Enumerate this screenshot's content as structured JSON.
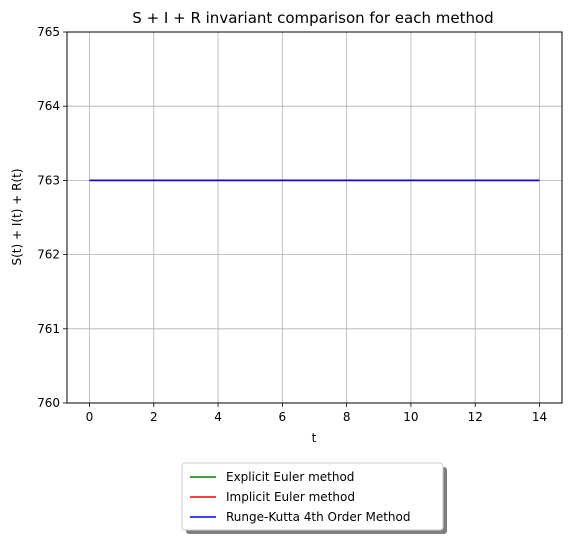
{
  "chart_data": {
    "type": "line",
    "title": "S + I + R invariant comparison for each method",
    "xlabel": "t",
    "ylabel": "S(t) + I(t) + R(t)",
    "xlim": [
      -0.7,
      14.7
    ],
    "ylim": [
      760,
      765
    ],
    "xticks": [
      0,
      2,
      4,
      6,
      8,
      10,
      12,
      14
    ],
    "xtick_labels": [
      "0",
      "2",
      "4",
      "6",
      "8",
      "10",
      "12",
      "14"
    ],
    "yticks": [
      760,
      761,
      762,
      763,
      764,
      765
    ],
    "ytick_labels": [
      "760",
      "761",
      "762",
      "763",
      "764",
      "765"
    ],
    "grid": true,
    "legend_position": "bottom-center-outside",
    "series": [
      {
        "name": "Explicit Euler method",
        "color": "#008000",
        "x": [
          0,
          14
        ],
        "y": [
          763,
          763
        ]
      },
      {
        "name": "Implicit Euler method",
        "color": "#ff0000",
        "x": [
          0,
          14
        ],
        "y": [
          763,
          763
        ]
      },
      {
        "name": "Runge-Kutta 4th Order Method",
        "color": "#0000ff",
        "x": [
          0,
          14
        ],
        "y": [
          763,
          763
        ]
      }
    ]
  }
}
